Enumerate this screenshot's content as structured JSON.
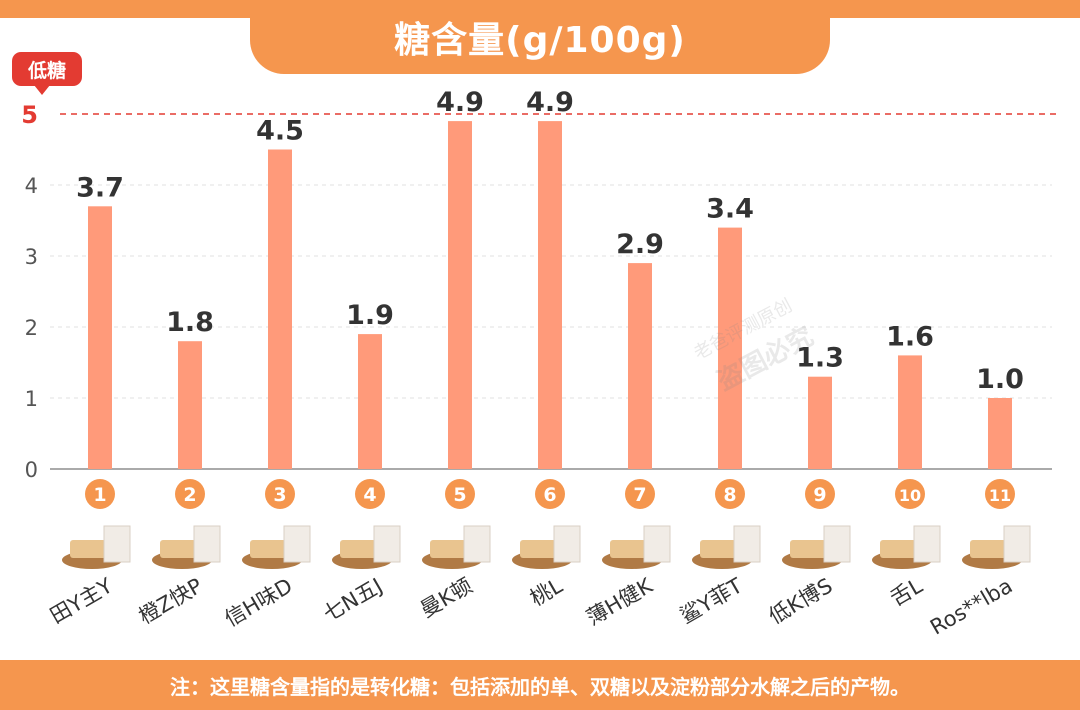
{
  "title": "糖含量(g/100g)",
  "badge": "低糖",
  "footer_note": "注：这里糖含量指的是转化糖：包括添加的单、双糖以及淀粉部分水解之后的产物。",
  "watermark": {
    "line1": "老爸评测原创",
    "line2": "盗图必究"
  },
  "colors": {
    "bar": "#FF9A7A",
    "accent": "#F5964E",
    "threshold": "#E33B32",
    "circle": "#F5964E"
  },
  "chart_data": {
    "type": "bar",
    "title": "糖含量(g/100g)",
    "categories": [
      "田Y主Y",
      "橙Z快P",
      "信H味D",
      "七N五J",
      "曼K顿",
      "桃L",
      "薄H健K",
      "鲨Y菲T",
      "低K博S",
      "舌L",
      "Ros**lba"
    ],
    "ranks": [
      "1",
      "2",
      "3",
      "4",
      "5",
      "6",
      "7",
      "8",
      "9",
      "10",
      "11"
    ],
    "values": [
      3.7,
      1.8,
      4.5,
      1.9,
      4.9,
      4.9,
      2.9,
      3.4,
      1.3,
      1.6,
      1.0
    ],
    "value_labels": [
      "3.7",
      "1.8",
      "4.5",
      "1.9",
      "4.9",
      "4.9",
      "2.9",
      "3.4",
      "1.3",
      "1.6",
      "1.0"
    ],
    "ylim": [
      0,
      5
    ],
    "yticks": [
      "0",
      "1",
      "2",
      "3",
      "4",
      "5"
    ],
    "threshold": {
      "value": 5,
      "label": "5",
      "style": "dashed"
    },
    "grid": true,
    "xlabel": "",
    "ylabel": ""
  }
}
